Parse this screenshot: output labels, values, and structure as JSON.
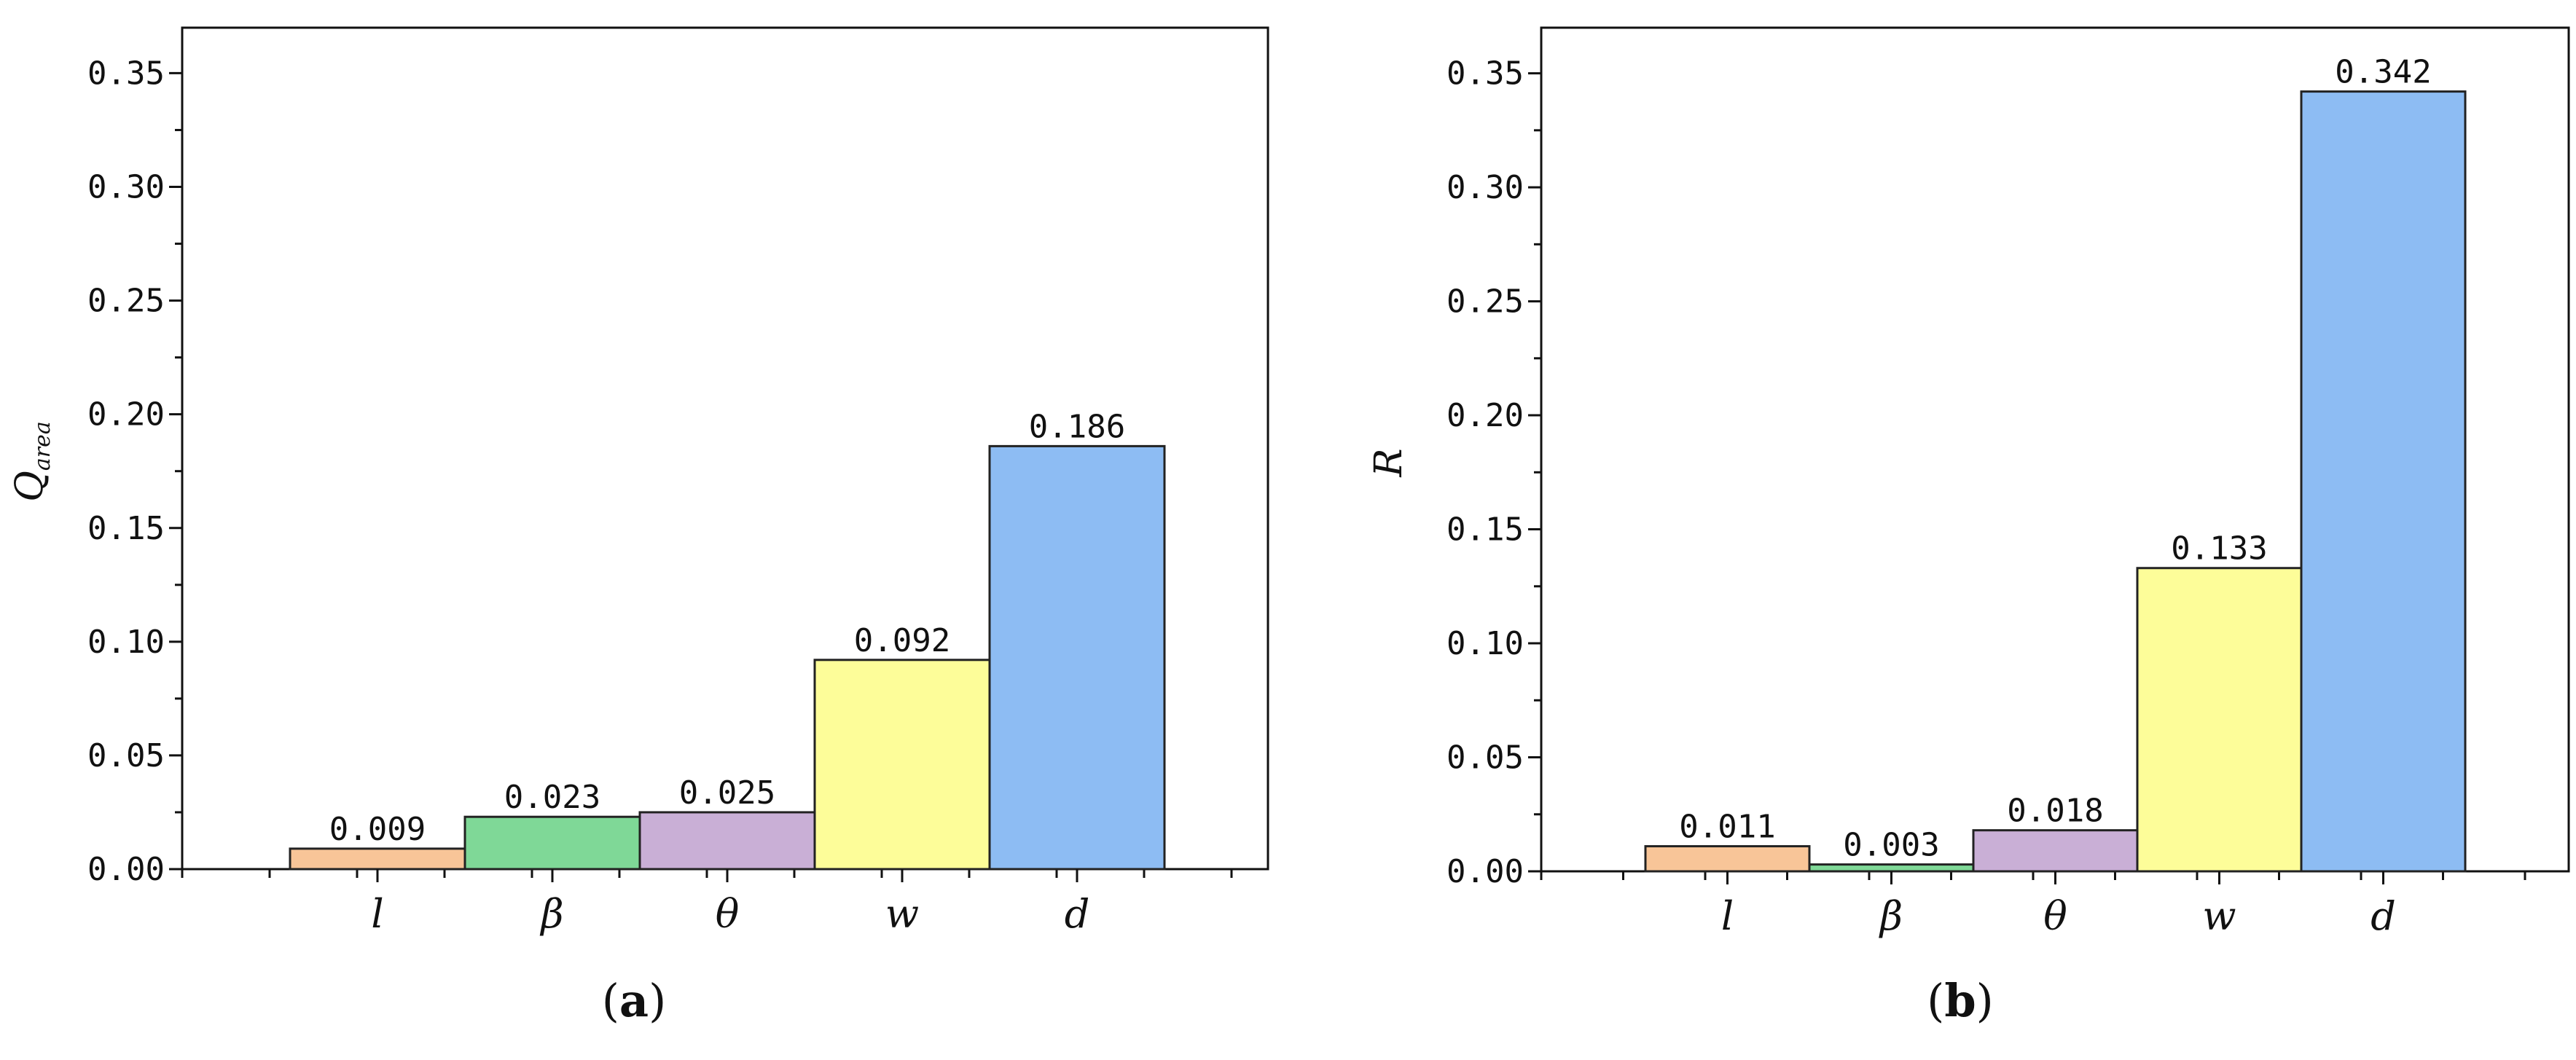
{
  "colors": {
    "l": "#f8c598",
    "beta": "#7fd897",
    "theta": "#c9afd6",
    "w": "#fdfd99",
    "d": "#8dbcf3",
    "outline": "#222222"
  },
  "chart_data": [
    {
      "type": "bar",
      "panel": "a",
      "caption_open": "(",
      "caption_letter": "a",
      "caption_close": ")",
      "ylabel_main": "Q",
      "ylabel_sub": "area",
      "categories": [
        "l",
        "β",
        "θ",
        "w",
        "d"
      ],
      "values": [
        0.009,
        0.023,
        0.025,
        0.092,
        0.186
      ],
      "value_labels": [
        "0.009",
        "0.023",
        "0.025",
        "0.092",
        "0.186"
      ],
      "ylim": [
        0,
        0.37
      ],
      "yticks": [
        0.0,
        0.05,
        0.1,
        0.15,
        0.2,
        0.25,
        0.3,
        0.35
      ],
      "ytick_labels": [
        "0.00",
        "0.05",
        "0.10",
        "0.15",
        "0.20",
        "0.25",
        "0.30",
        "0.35"
      ],
      "grid": false
    },
    {
      "type": "bar",
      "panel": "b",
      "caption_open": "(",
      "caption_letter": "b",
      "caption_close": ")",
      "ylabel_main": "R",
      "ylabel_sub": "",
      "categories": [
        "l",
        "β",
        "θ",
        "w",
        "d"
      ],
      "values": [
        0.011,
        0.003,
        0.018,
        0.133,
        0.342
      ],
      "value_labels": [
        "0.011",
        "0.003",
        "0.018",
        "0.133",
        "0.342"
      ],
      "ylim": [
        0,
        0.37
      ],
      "yticks": [
        0.0,
        0.05,
        0.1,
        0.15,
        0.2,
        0.25,
        0.3,
        0.35
      ],
      "ytick_labels": [
        "0.00",
        "0.05",
        "0.10",
        "0.15",
        "0.20",
        "0.25",
        "0.30",
        "0.35"
      ],
      "grid": false
    }
  ]
}
